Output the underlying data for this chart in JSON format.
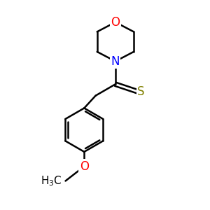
{
  "background_color": "#ffffff",
  "bond_color": "#000000",
  "bond_width": 1.8,
  "atom_colors": {
    "O": "#ff0000",
    "N": "#0000ff",
    "S": "#808000",
    "C": "#000000"
  },
  "font_size": 11,
  "fig_size": [
    3.0,
    3.0
  ],
  "dpi": 100,
  "xlim": [
    0,
    10
  ],
  "ylim": [
    0,
    10
  ]
}
